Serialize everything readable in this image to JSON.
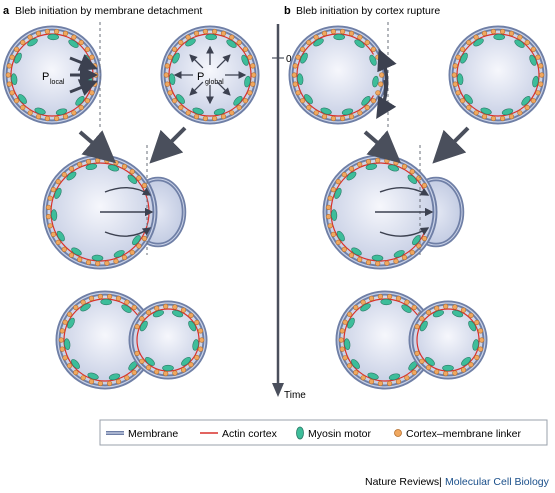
{
  "panels": {
    "a": {
      "letter": "a",
      "title": "Bleb initiation by membrane detachment"
    },
    "b": {
      "letter": "b",
      "title": "Bleb initiation by cortex rupture"
    }
  },
  "labels": {
    "p_local_main": "P",
    "p_local_sub": "local",
    "p_global_main": "P",
    "p_global_sub": "global",
    "time_zero": "0",
    "time_axis": "Time"
  },
  "legend": {
    "items": [
      {
        "label": "Membrane"
      },
      {
        "label": "Actin cortex"
      },
      {
        "label": "Myosin motor"
      },
      {
        "label": "Cortex–membrane linker"
      }
    ]
  },
  "credit": {
    "publisher": "Nature Reviews",
    "separator": "|",
    "journal": "Molecular Cell Biology"
  },
  "colors": {
    "membrane": "#6f7fa6",
    "membrane_inner": "#c9d2e8",
    "cytoplasm_center": "#f4f6fc",
    "cytoplasm_edge": "#c3cbe2",
    "actin": "#d9302b",
    "myosin": "#3dbd9a",
    "linker": "#f0a860",
    "arrow": "#4a4f5c"
  }
}
